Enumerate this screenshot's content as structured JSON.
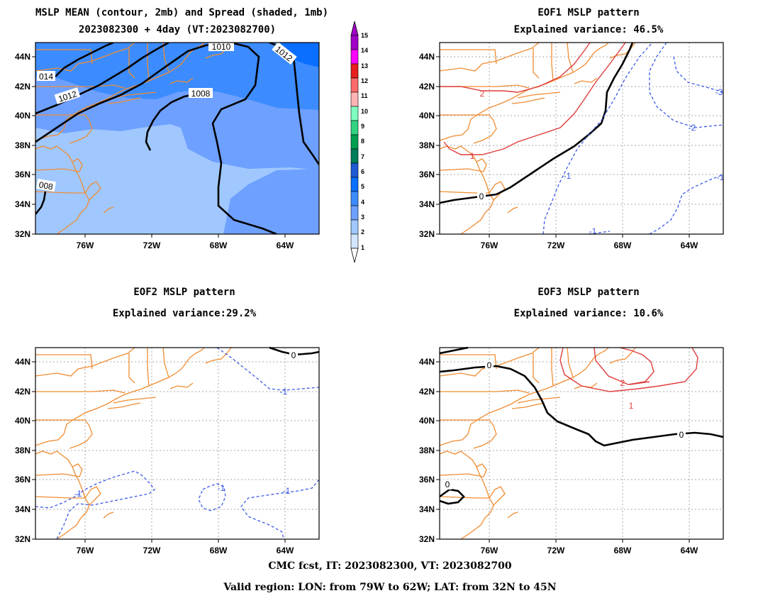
{
  "panels": {
    "mean": {
      "title1": "MSLP MEAN (contour, 2mb) and Spread (shaded, 1mb)",
      "title2": "2023082300 + 4day (VT:2023082700)",
      "labels": [
        "1010",
        "1012",
        "1012",
        "1008",
        "014",
        "008"
      ]
    },
    "eof1": {
      "title1": "EOF1 MSLP pattern",
      "title2": "Explained variance: 46.5%",
      "labels": [
        "2",
        "1",
        "0",
        "-1",
        "-1",
        "-2",
        "-3",
        "-1"
      ]
    },
    "eof2": {
      "title1": "EOF2 MSLP pattern",
      "title2": "Explained variance:29.2%",
      "labels": [
        "0",
        "-1",
        "-1",
        "-1",
        "-1"
      ]
    },
    "eof3": {
      "title1": "EOF3 MSLP pattern",
      "title2": "Explained variance: 10.6%",
      "labels": [
        "0",
        "0",
        "0",
        "2",
        "1"
      ]
    }
  },
  "axes": {
    "lon_ticks": [
      "76W",
      "72W",
      "68W",
      "64W"
    ],
    "lat_ticks": [
      "44N",
      "42N",
      "40N",
      "38N",
      "36N",
      "34N",
      "32N"
    ]
  },
  "colorbar": {
    "levels": [
      "15",
      "14",
      "13",
      "12",
      "11",
      "10",
      "9",
      "8",
      "7",
      "6",
      "5",
      "4",
      "3",
      "2",
      "1"
    ],
    "colors": [
      "#a000c8",
      "#ff00ff",
      "#e61e1e",
      "#ff6a6a",
      "#ffb4b4",
      "#7fffbf",
      "#32d282",
      "#00a050",
      "#007d5a",
      "#1e5ad2",
      "#0a6eff",
      "#3c8cff",
      "#6ea0ff",
      "#a0c8ff",
      "#d2e6ff"
    ]
  },
  "shading": {
    "colors": [
      "#a0c8ff",
      "#6ea0ff",
      "#3c8cff",
      "#0a6eff"
    ]
  },
  "footer": {
    "line1": "CMC fcst, IT: 2023082300, VT: 2023082700",
    "line2": "Valid region: LON: from 79W to 62W; LAT: from 32N to 45N"
  }
}
